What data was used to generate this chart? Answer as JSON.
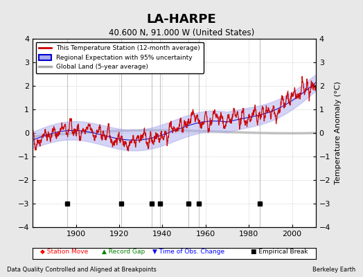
{
  "title": "LA-HARPE",
  "subtitle": "40.600 N, 91.000 W (United States)",
  "ylabel": "Temperature Anomaly (°C)",
  "xlabel_bottom_left": "Data Quality Controlled and Aligned at Breakpoints",
  "xlabel_bottom_right": "Berkeley Earth",
  "ylim": [
    -4,
    4
  ],
  "xlim": [
    1880,
    2011
  ],
  "xticks": [
    1900,
    1920,
    1940,
    1960,
    1980,
    2000
  ],
  "yticks": [
    -4,
    -3,
    -2,
    -1,
    0,
    1,
    2,
    3,
    4
  ],
  "bg_color": "#e8e8e8",
  "plot_bg_color": "#ffffff",
  "grid_color": "#cccccc",
  "red_line_color": "#cc0000",
  "blue_line_color": "#0000cc",
  "blue_fill_color": "#aaaaee",
  "gray_line_color": "#aaaaaa",
  "empirical_break_years": [
    1896,
    1921,
    1935,
    1939,
    1952,
    1957,
    1985
  ],
  "seed": 42,
  "start_year": 1880,
  "end_year": 2011,
  "n_years": 131
}
